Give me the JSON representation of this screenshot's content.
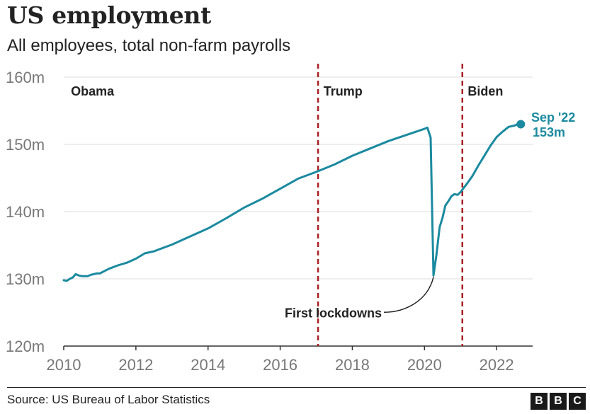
{
  "header": {
    "title": "US employment",
    "subtitle": "All employees, total non-farm payrolls"
  },
  "footer": {
    "source": "Source: US Bureau of Labor Statistics",
    "logo_letters": [
      "B",
      "B",
      "C"
    ]
  },
  "colors": {
    "line": "#1b8aa0",
    "marker_line": "#aa1e22",
    "grid": "#dddddd",
    "text": "#222222",
    "axis_text": "#777777"
  },
  "chart_data": {
    "type": "line",
    "title": "US employment",
    "subtitle": "All employees, total non-farm payrolls",
    "xlabel": "",
    "ylabel": "",
    "xlim": [
      2010,
      2022.9
    ],
    "ylim": [
      120,
      160
    ],
    "x_ticks": [
      2010,
      2012,
      2014,
      2016,
      2018,
      2020,
      2022
    ],
    "y_ticks": [
      120,
      130,
      140,
      150,
      160
    ],
    "y_tick_labels": [
      "120m",
      "130m",
      "140m",
      "150m",
      "160m"
    ],
    "grid": true,
    "series": [
      {
        "name": "Total non-farm payrolls (millions)",
        "x": [
          2010.0,
          2010.08,
          2010.17,
          2010.25,
          2010.33,
          2010.42,
          2010.5,
          2010.58,
          2010.67,
          2010.75,
          2010.83,
          2010.92,
          2011.0,
          2011.25,
          2011.5,
          2011.75,
          2012.0,
          2012.25,
          2012.5,
          2012.75,
          2013.0,
          2013.5,
          2014.0,
          2014.5,
          2015.0,
          2015.5,
          2016.0,
          2016.5,
          2017.0,
          2017.5,
          2018.0,
          2018.5,
          2019.0,
          2019.5,
          2020.0,
          2020.08,
          2020.17,
          2020.25,
          2020.33,
          2020.42,
          2020.5,
          2020.58,
          2020.67,
          2020.75,
          2020.83,
          2020.92,
          2021.0,
          2021.17,
          2021.33,
          2021.5,
          2021.67,
          2021.83,
          2022.0,
          2022.17,
          2022.33,
          2022.5,
          2022.58,
          2022.67
        ],
        "y": [
          129.8,
          129.7,
          130.0,
          130.2,
          130.7,
          130.5,
          130.4,
          130.4,
          130.4,
          130.6,
          130.7,
          130.8,
          130.8,
          131.5,
          132.0,
          132.4,
          133.0,
          133.8,
          134.1,
          134.6,
          135.1,
          136.3,
          137.5,
          139.0,
          140.6,
          141.9,
          143.4,
          144.9,
          145.9,
          147.0,
          148.3,
          149.4,
          150.5,
          151.4,
          152.3,
          152.5,
          151.0,
          130.5,
          133.5,
          137.7,
          139.1,
          140.9,
          141.6,
          142.3,
          142.6,
          142.5,
          142.9,
          144.1,
          145.3,
          146.9,
          148.4,
          149.8,
          151.1,
          151.9,
          152.6,
          152.8,
          153.0,
          153.0
        ]
      }
    ],
    "vertical_markers": [
      {
        "x": 2017.05,
        "label": "Trump"
      },
      {
        "x": 2021.05,
        "label": "Biden"
      }
    ],
    "region_labels": [
      {
        "x": 2010.2,
        "label": "Obama"
      },
      {
        "x": 2017.2,
        "label": "Trump"
      },
      {
        "x": 2021.2,
        "label": "Biden"
      }
    ],
    "annotations": [
      {
        "x": 2020.25,
        "y": 130.5,
        "text": "First lockdowns"
      }
    ],
    "end_label": {
      "x": 2022.67,
      "y": 153.0,
      "line1": "Sep '22",
      "line2": "153m"
    }
  }
}
